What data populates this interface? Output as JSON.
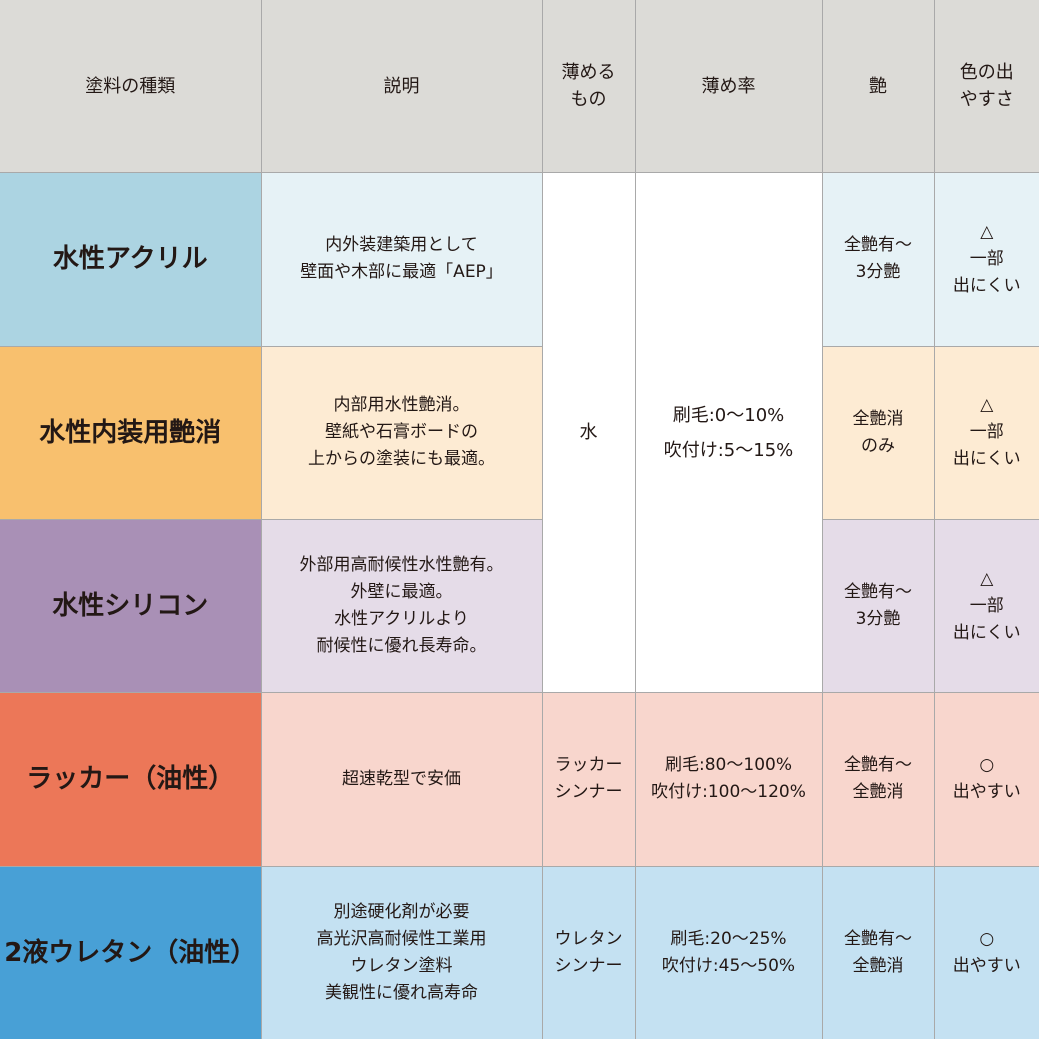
{
  "headers": [
    "塗料の種類",
    "説明",
    "薄める\nもの",
    "薄め率",
    "艶",
    "色の出\nやすさ"
  ],
  "colors": {
    "header": "#dcdbd7",
    "rows": [
      {
        "label": "#acd4e2",
        "cell": "#e6f2f6"
      },
      {
        "label": "#f8c06e",
        "cell": "#fdebd3"
      },
      {
        "label": "#a990b6",
        "cell": "#e5dce8"
      },
      {
        "label": "#ec7758",
        "cell": "#f8d6cd"
      },
      {
        "label": "#48a0d6",
        "cell": "#c4e1f2"
      }
    ]
  },
  "rows": [
    {
      "type": "水性アクリル",
      "description": "内外装建築用として\n壁面や木部に最適「AEP」",
      "gloss": "全艶有〜\n3分艶",
      "color_ease": "△\n一部\n出にくい"
    },
    {
      "type": "水性内装用艶消",
      "description": "内部用水性艶消。\n壁紙や石膏ボードの\n上からの塗装にも最適。",
      "gloss": "全艶消\nのみ",
      "color_ease": "△\n一部\n出にくい"
    },
    {
      "type": "水性シリコン",
      "description": "外部用高耐候性水性艶有。\n外壁に最適。\n水性アクリルより\n耐候性に優れ長寿命。",
      "gloss": "全艶有〜\n3分艶",
      "color_ease": "△\n一部\n出にくい"
    },
    {
      "type": "ラッカー（油性）",
      "description": "超速乾型で安価",
      "thinner": "ラッカー\nシンナー",
      "ratio": "刷毛:80〜100%\n吹付け:100〜120%",
      "gloss": "全艶有〜\n全艶消",
      "color_ease": "○\n出やすい"
    },
    {
      "type": "2液ウレタン（油性）",
      "description": "別途硬化剤が必要\n高光沢高耐候性工業用\nウレタン塗料\n美観性に優れ高寿命",
      "thinner": "ウレタン\nシンナー",
      "ratio": "刷毛:20〜25%\n吹付け:45〜50%",
      "gloss": "全艶有〜\n全艶消",
      "color_ease": "○\n出やすい"
    }
  ],
  "water_group": {
    "thinner": "水",
    "ratio": "刷毛:0〜10%\n吹付け:5〜15%"
  }
}
